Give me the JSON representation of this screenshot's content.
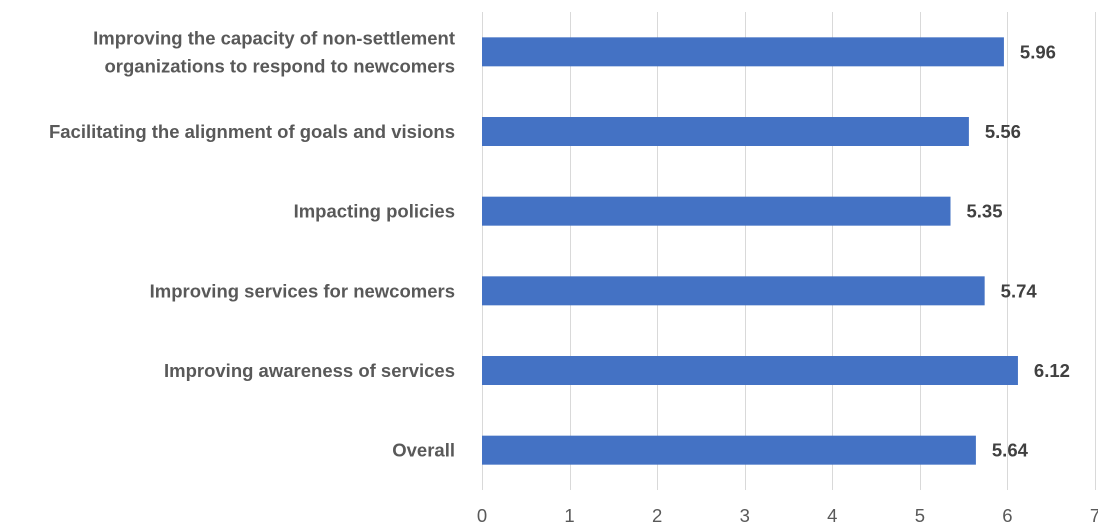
{
  "chart_data": {
    "type": "bar",
    "orientation": "horizontal",
    "title": "",
    "xlabel": "",
    "ylabel": "",
    "categories": [
      "Improving the capacity of non-settlement organizations to respond to newcomers",
      "Facilitating the alignment of goals and visions",
      "Impacting policies",
      "Improving services for newcomers",
      "Improving awareness of services",
      "Overall"
    ],
    "category_lines": [
      [
        "Improving the capacity of non-settlement",
        "organizations to respond to newcomers"
      ],
      [
        "Facilitating the alignment of goals and visions"
      ],
      [
        "Impacting policies"
      ],
      [
        "Improving services for newcomers"
      ],
      [
        "Improving awareness of services"
      ],
      [
        "Overall"
      ]
    ],
    "values": [
      5.96,
      5.56,
      5.35,
      5.74,
      6.12,
      5.64
    ],
    "value_labels": [
      "5.96",
      "5.56",
      "5.35",
      "5.74",
      "6.12",
      "5.64"
    ],
    "xlim": [
      0,
      7
    ],
    "x_ticks": [
      0,
      1,
      2,
      3,
      4,
      5,
      6,
      7
    ],
    "x_tick_labels": [
      "0",
      "1",
      "2",
      "3",
      "4",
      "5",
      "6",
      "7"
    ],
    "grid": true,
    "legend": "none",
    "bar_color": "#4472C4",
    "grid_color": "#D9D9D9"
  }
}
